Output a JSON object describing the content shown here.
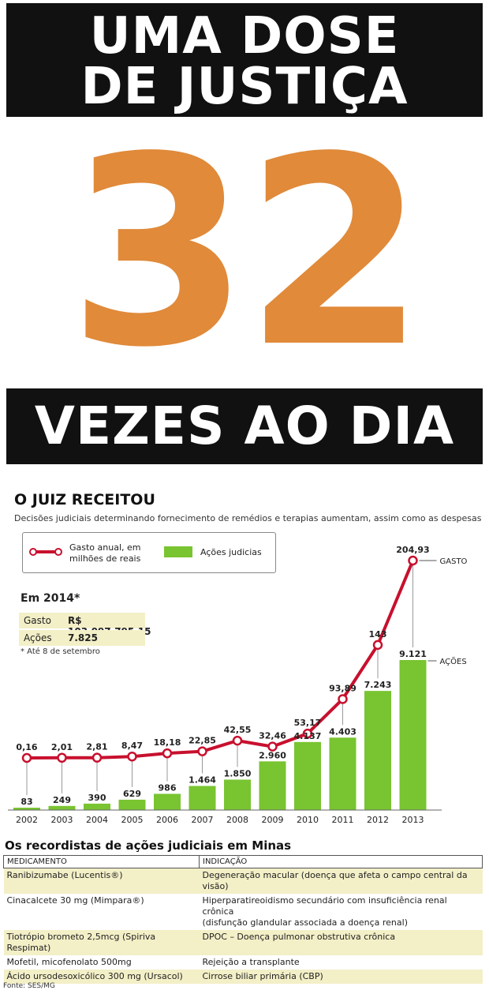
{
  "hero": {
    "line1": "UMA DOSE",
    "line2": "DE JUSTIÇA",
    "number": "32",
    "line3": "VEZES AO DIA"
  },
  "chart_data": {
    "type": "bar+line",
    "title": "O JUIZ RECEITOU",
    "subtitle": "Decisões judiciais determinando fornecimento de remédios e terapias aumentam, assim como as despesas",
    "categories": [
      "2002",
      "2003",
      "2004",
      "2005",
      "2006",
      "2007",
      "2008",
      "2009",
      "2010",
      "2011",
      "2012",
      "2013"
    ],
    "series": [
      {
        "name": "Gasto anual, em milhões de reais",
        "type": "line",
        "color": "#c8102e",
        "values": [
          0.16,
          2.01,
          2.81,
          8.47,
          18.18,
          22.85,
          42.55,
          32.46,
          53.17,
          93.89,
          143,
          204.93
        ],
        "labels": [
          "0,16",
          "2,01",
          "2,81",
          "8,47",
          "18,18",
          "22,85",
          "42,55",
          "32,46",
          "53,17",
          "93,89",
          "143",
          "204,93"
        ],
        "end_label": "GASTO"
      },
      {
        "name": "Ações judicias",
        "type": "bar",
        "color": "#79c431",
        "values": [
          83,
          249,
          390,
          629,
          986,
          1464,
          1850,
          2960,
          4137,
          4403,
          7243,
          9121
        ],
        "labels": [
          "83",
          "249",
          "390",
          "629",
          "986",
          "1.464",
          "1.850",
          "2.960",
          "4.137",
          "4.403",
          "7.243",
          "9.121"
        ],
        "end_label": "AÇÕES"
      }
    ],
    "legend": {
      "line_label_1": "Gasto anual, em",
      "line_label_2": "milhões de reais",
      "bar_label": "Ações judicias",
      "placement": "top-left"
    }
  },
  "stats": {
    "title": "Em 2014*",
    "gasto_label": "Gasto",
    "gasto_value": "R$ 103.097.795,15",
    "acoes_label": "Ações",
    "acoes_value": "7.825",
    "note": "* Até 8 de setembro"
  },
  "table": {
    "title": "Os recordistas de ações judiciais em Minas",
    "headers": [
      "MEDICAMENTO",
      "INDICAÇÃO"
    ],
    "rows": [
      {
        "drug": "Ranibizumabe (Lucentis®)",
        "use1": "Degeneração macular (doença que afeta o campo central da visão)",
        "use2": ""
      },
      {
        "drug": "Cinacalcete 30 mg (Mimpara®)",
        "use1": "Hiperparatireoidismo secundário com insuficiência renal crônica",
        "use2": "(disfunção glandular associada a doença renal)"
      },
      {
        "drug": "Tiotrópio brometo 2,5mcg (Spiriva Respimat)",
        "use1": "DPOC – Doença pulmonar obstrutiva crônica",
        "use2": ""
      },
      {
        "drug": "Mofetil, micofenolato 500mg",
        "use1": "Rejeição a transplante",
        "use2": ""
      },
      {
        "drug": "Ácido ursodesoxicólico 300 mg (Ursacol)",
        "use1": "Cirrose biliar primária (CBP)",
        "use2": ""
      }
    ]
  },
  "source": "Fonte: SES/MG"
}
